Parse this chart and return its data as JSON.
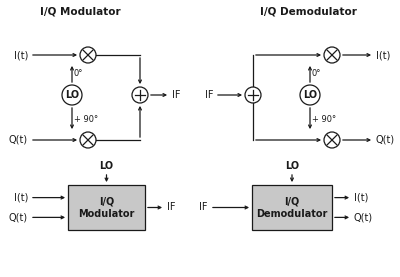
{
  "bg_color": "#ffffff",
  "line_color": "#1a1a1a",
  "box_fill": "#c8c8c8",
  "title_mod": "I/Q Modulator",
  "title_demod": "I/Q Demodulator",
  "label_mod_box": "I/Q\nModulator",
  "label_demod_box": "I/Q\nDemodulator",
  "fs_label": 7.0,
  "fs_tiny": 6.0,
  "fs_title": 7.5,
  "lw": 0.9,
  "r_mix": 8,
  "r_lo": 10,
  "r_sum": 8
}
